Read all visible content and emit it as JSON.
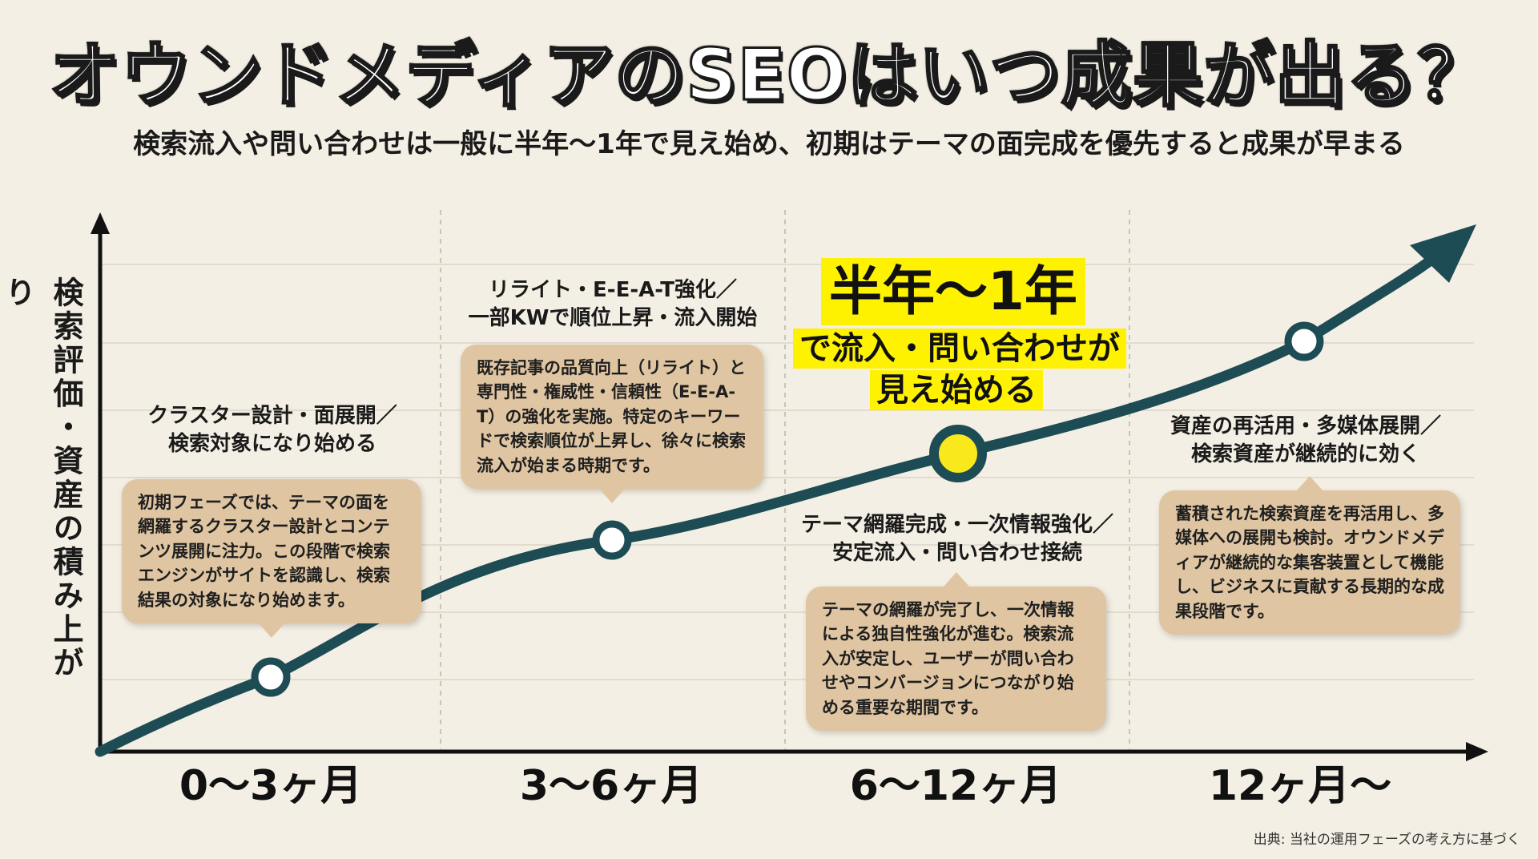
{
  "title": "オウンドメディアのSEOはいつ成果が出る？",
  "subtitle": "検索流入や問い合わせは一般に半年〜1年で見え始め、初期はテーマの面完成を優先すると成果が早まる",
  "y_axis_label": "検索評価・資産の積み上がり",
  "highlight": {
    "main": "半年〜1年",
    "line1": "で流入・問い合わせが",
    "line2": "見え始める"
  },
  "phases": [
    {
      "period": "0〜3ヶ月",
      "title_line1": "クラスター設計・面展開／",
      "title_line2": "検索対象になり始める",
      "description": "初期フェーズでは、テーマの面を網羅するクラスター設計とコンテンツ展開に注力。この段階で検索エンジンがサイトを認識し、検索結果の対象になり始めます。"
    },
    {
      "period": "3〜6ヶ月",
      "title_line1": "リライト・E-E-A-T強化／",
      "title_line2": "一部KWで順位上昇・流入開始",
      "description": "既存記事の品質向上（リライト）と専門性・権威性・信頼性（E-E-A-T）の強化を実施。特定のキーワードで検索順位が上昇し、徐々に検索流入が始まる時期です。"
    },
    {
      "period": "6〜12ヶ月",
      "title_line1": "テーマ網羅完成・一次情報強化／",
      "title_line2": "安定流入・問い合わせ接続",
      "description": "テーマの網羅が完了し、一次情報による独自性強化が進む。検索流入が安定し、ユーザーが問い合わせやコンバージョンにつながり始める重要な期間です。"
    },
    {
      "period": "12ヶ月〜",
      "title_line1": "資産の再活用・多媒体展開／",
      "title_line2": "検索資産が継続的に効く",
      "description": "蓄積された検索資産を再活用し、多媒体への展開も検討。オウンドメディアが継続的な集客装置として機能し、ビジネスに貢献する長期的な成果段階です。"
    }
  ],
  "source": "出典: 当社の運用フェーズの考え方に基づく",
  "colors": {
    "background": "#f4efe4",
    "curve": "#1d4c55",
    "bubble": "#dfc5a2",
    "highlight": "#fff200",
    "text": "#1a1a1a"
  }
}
